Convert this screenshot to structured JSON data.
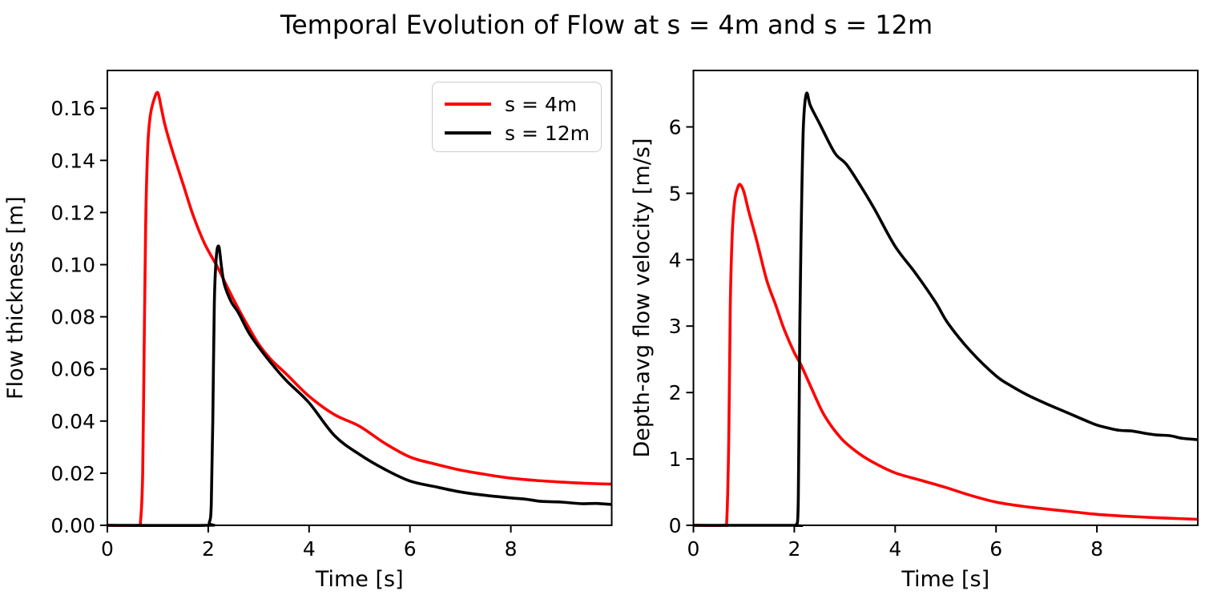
{
  "title": "Temporal Evolution of Flow at s = 4m and s = 12m",
  "colors": {
    "background": "#ffffff",
    "axis": "#000000",
    "series_s4m": "#ff0000",
    "series_s12m": "#000000",
    "legend_border": "#cccccc"
  },
  "legend": {
    "entries": [
      {
        "label": "s = 4m",
        "color": "#ff0000"
      },
      {
        "label": "s = 12m",
        "color": "#000000"
      }
    ]
  },
  "chart_data": {
    "type": "line",
    "title": "Temporal Evolution of Flow at s = 4m and s = 12m",
    "grid": false,
    "legend_position": "upper right of left panel",
    "panels": [
      {
        "name": "flow-thickness",
        "xlabel": "Time [s]",
        "ylabel": "Flow thickness [m]",
        "xlim": [
          0,
          10
        ],
        "ylim": [
          0,
          0.1745
        ],
        "xticks": [
          0,
          2,
          4,
          6,
          8
        ],
        "xtick_labels": [
          "0",
          "2",
          "4",
          "6",
          "8"
        ],
        "yticks": [
          0.0,
          0.02,
          0.04,
          0.06,
          0.08,
          0.1,
          0.12,
          0.14,
          0.16
        ],
        "ytick_labels": [
          "0.00",
          "0.02",
          "0.04",
          "0.06",
          "0.08",
          "0.10",
          "0.12",
          "0.14",
          "0.16"
        ],
        "series": [
          {
            "name": "s = 4m",
            "color": "#ff0000",
            "x": [
              0,
              0.6,
              0.66,
              0.7,
              0.73,
              0.76,
              0.8,
              0.85,
              0.92,
              1.0,
              1.07,
              1.15,
              1.3,
              1.5,
              1.7,
              1.93,
              2.2,
              2.4,
              2.6,
              2.8,
              3.0,
              3.25,
              3.55,
              4.0,
              4.5,
              5.0,
              5.5,
              6.0,
              6.5,
              7.0,
              7.5,
              8.0,
              8.5,
              9.0,
              9.5,
              10.0
            ],
            "y": [
              0,
              0,
              0.002,
              0.02,
              0.07,
              0.115,
              0.145,
              0.157,
              0.163,
              0.166,
              0.16,
              0.153,
              0.143,
              0.131,
              0.119,
              0.108,
              0.0985,
              0.0905,
              0.083,
              0.076,
              0.0695,
              0.0635,
              0.058,
              0.0495,
              0.0425,
              0.038,
              0.0315,
              0.0262,
              0.0235,
              0.0212,
              0.0195,
              0.0181,
              0.0172,
              0.0166,
              0.0161,
              0.0158
            ]
          },
          {
            "name": "s = 12m",
            "color": "#000000",
            "x": [
              0,
              1.95,
              2.02,
              2.06,
              2.09,
              2.12,
              2.16,
              2.21,
              2.26,
              2.32,
              2.45,
              2.6,
              2.8,
              3.0,
              3.3,
              3.57,
              4.0,
              4.5,
              5.0,
              5.5,
              6.0,
              6.5,
              7.0,
              7.5,
              8.0,
              8.3,
              8.6,
              9.0,
              9.4,
              9.7,
              10.0
            ],
            "y": [
              0,
              0,
              0.001,
              0.008,
              0.04,
              0.085,
              0.103,
              0.107,
              0.0995,
              0.0925,
              0.086,
              0.0815,
              0.074,
              0.0684,
              0.061,
              0.0551,
              0.047,
              0.0345,
              0.0272,
              0.0215,
              0.017,
              0.0148,
              0.0128,
              0.0115,
              0.0105,
              0.01,
              0.0092,
              0.0089,
              0.0083,
              0.0084,
              0.008
            ]
          }
        ]
      },
      {
        "name": "flow-velocity",
        "xlabel": "Time [s]",
        "ylabel": "Depth-avg flow velocity [m/s]",
        "xlim": [
          0,
          10
        ],
        "ylim": [
          0,
          6.85
        ],
        "xticks": [
          0,
          2,
          4,
          6,
          8
        ],
        "xtick_labels": [
          "0",
          "2",
          "4",
          "6",
          "8"
        ],
        "yticks": [
          0,
          1,
          2,
          3,
          4,
          5,
          6
        ],
        "ytick_labels": [
          "0",
          "1",
          "2",
          "3",
          "4",
          "5",
          "6"
        ],
        "series": [
          {
            "name": "s = 4m",
            "color": "#ff0000",
            "x": [
              0,
              0.6,
              0.66,
              0.7,
              0.73,
              0.77,
              0.82,
              0.88,
              0.93,
              1.0,
              1.1,
              1.25,
              1.45,
              1.63,
              1.8,
              2.0,
              2.13,
              2.35,
              2.6,
              2.93,
              3.25,
              3.56,
              4.0,
              4.5,
              5.0,
              5.5,
              6.0,
              6.5,
              7.0,
              7.5,
              8.0,
              8.5,
              9.0,
              9.5,
              10.0
            ],
            "y": [
              0,
              0,
              0.05,
              1.3,
              3.3,
              4.4,
              4.9,
              5.09,
              5.13,
              5.02,
              4.72,
              4.3,
              3.7,
              3.32,
              2.95,
              2.6,
              2.42,
              2.05,
              1.65,
              1.31,
              1.1,
              0.95,
              0.79,
              0.68,
              0.57,
              0.45,
              0.35,
              0.29,
              0.245,
              0.205,
              0.165,
              0.14,
              0.12,
              0.105,
              0.09
            ]
          },
          {
            "name": "s = 12m",
            "color": "#000000",
            "x": [
              0,
              1.98,
              2.04,
              2.08,
              2.11,
              2.14,
              2.18,
              2.24,
              2.32,
              2.5,
              2.8,
              3.03,
              3.3,
              3.6,
              4.0,
              4.4,
              4.8,
              5.05,
              5.5,
              6.0,
              6.3,
              6.63,
              7.0,
              7.4,
              7.8,
              8.0,
              8.2,
              8.45,
              8.7,
              9.0,
              9.2,
              9.45,
              9.7,
              10.0
            ],
            "y": [
              0,
              0,
              0.002,
              0.4,
              3.0,
              4.6,
              6.0,
              6.5,
              6.32,
              6.05,
              5.61,
              5.44,
              5.13,
              4.75,
              4.2,
              3.8,
              3.36,
              3.04,
              2.62,
              2.25,
              2.1,
              1.96,
              1.83,
              1.7,
              1.57,
              1.51,
              1.47,
              1.43,
              1.42,
              1.38,
              1.36,
              1.35,
              1.31,
              1.29
            ]
          }
        ]
      }
    ]
  }
}
